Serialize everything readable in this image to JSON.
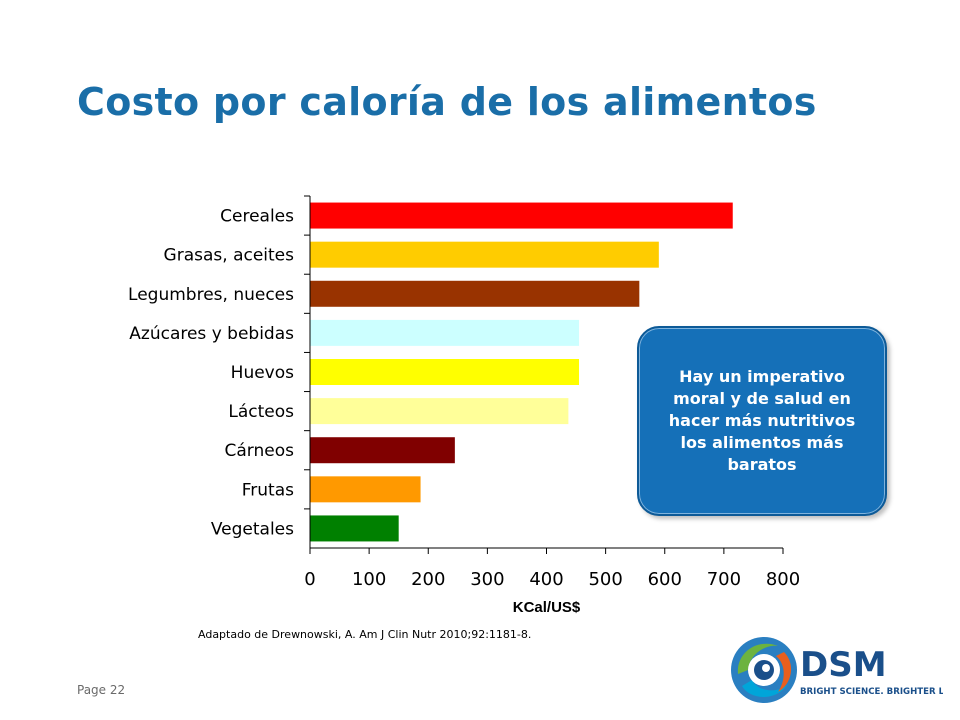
{
  "title": "Costo por caloría de los alimentos",
  "callout": "Hay un imperativo moral y de salud en hacer más nutritivos los alimentos más baratos",
  "source": "Adaptado de Drewnowski, A. Am J Clin Nutr 2010;92:1181-8.",
  "page_label": "Page 22",
  "logo": {
    "name": "DSM",
    "tagline": "BRIGHT SCIENCE. BRIGHTER LIVING.",
    "icon": "dsm-swirl-icon"
  },
  "chart_data": {
    "type": "bar",
    "orientation": "horizontal",
    "categories": [
      "Cereales",
      "Grasas, aceites",
      "Legumbres, nueces",
      "Azúcares y bebidas",
      "Huevos",
      "Lácteos",
      "Cárneos",
      "Frutas",
      "Vegetales"
    ],
    "values": [
      715,
      590,
      557,
      455,
      455,
      437,
      245,
      187,
      150
    ],
    "colors": [
      "#ff0000",
      "#ffcc00",
      "#993300",
      "#ccffff",
      "#ffff00",
      "#ffff99",
      "#800000",
      "#ff9900",
      "#008000"
    ],
    "xlabel": "KCal/US$",
    "xlim": [
      0,
      800
    ],
    "xticks": [
      "0",
      "100",
      "200",
      "300",
      "400",
      "500",
      "600",
      "700",
      "800"
    ],
    "grid": false,
    "legend": "none"
  }
}
